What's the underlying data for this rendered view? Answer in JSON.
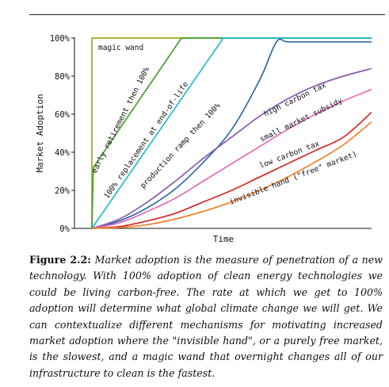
{
  "chart_data": {
    "type": "line",
    "xlabel": "Time",
    "ylabel": "Market Adoption",
    "ylim": [
      0,
      100
    ],
    "yticks": [
      "0%",
      "20%",
      "40%",
      "60%",
      "80%",
      "100%"
    ],
    "x_range": [
      0,
      100
    ],
    "grid": false,
    "legend": "inline labels along curves",
    "series": [
      {
        "name": "magic wand",
        "color": "#a8a621",
        "x": [
          0,
          0.001,
          100
        ],
        "y": [
          0,
          100,
          100
        ]
      },
      {
        "name": "early retirement then 100%",
        "color": "#43a02f",
        "x": [
          0,
          0.5,
          32,
          100
        ],
        "y": [
          0,
          32,
          100,
          100
        ]
      },
      {
        "name": "100% replacement at end-of-life",
        "color": "#1fbcd3",
        "x": [
          0,
          47,
          100
        ],
        "y": [
          0,
          100,
          100
        ]
      },
      {
        "name": "production ramp then 100%",
        "color": "#2d6aa5",
        "x": [
          0,
          10,
          20,
          30,
          40,
          50,
          60,
          66,
          70,
          80,
          100
        ],
        "y": [
          0,
          4,
          11,
          21,
          35,
          52,
          78,
          98,
          98,
          98,
          98
        ]
      },
      {
        "name": "high carbon tax",
        "color": "#8a5aaa",
        "x": [
          0,
          10,
          20,
          30,
          40,
          50,
          60,
          70,
          80,
          90,
          100
        ],
        "y": [
          0,
          5,
          14,
          25,
          37,
          48,
          59,
          68,
          75,
          80,
          84
        ]
      },
      {
        "name": "small market subsidy",
        "color": "#e46aba",
        "x": [
          0,
          10,
          20,
          30,
          40,
          50,
          60,
          70,
          80,
          90,
          100
        ],
        "y": [
          0,
          3,
          9,
          16,
          25,
          34,
          43,
          52,
          60,
          67,
          73
        ]
      },
      {
        "name": "low carbon tax",
        "color": "#d62728",
        "x": [
          0,
          10,
          20,
          30,
          40,
          50,
          60,
          70,
          80,
          90,
          100
        ],
        "y": [
          0,
          1,
          4,
          8,
          14,
          20,
          27,
          34,
          41,
          48,
          61
        ]
      },
      {
        "name": "invisible hand (\"free\" market)",
        "color": "#f0822a",
        "x": [
          0,
          10,
          20,
          30,
          40,
          50,
          60,
          70,
          80,
          90,
          100
        ],
        "y": [
          0,
          0.5,
          2,
          5,
          9,
          14,
          20,
          27,
          35,
          44,
          56
        ]
      }
    ]
  },
  "caption": {
    "label": "Figure 2.2:",
    "text": "Market adoption is the measure of penetration of a new technology. With 100% adoption of clean energy technologies we could be living carbon-free. The rate at which we get to 100% adoption will determine what global climate change we will get. We can contextualize different mechanisms for motivating increased market adoption where the \"invisible hand\", or a purely free market, is the slowest, and a magic wand that overnight changes all of our infrastructure to clean is the fastest."
  }
}
